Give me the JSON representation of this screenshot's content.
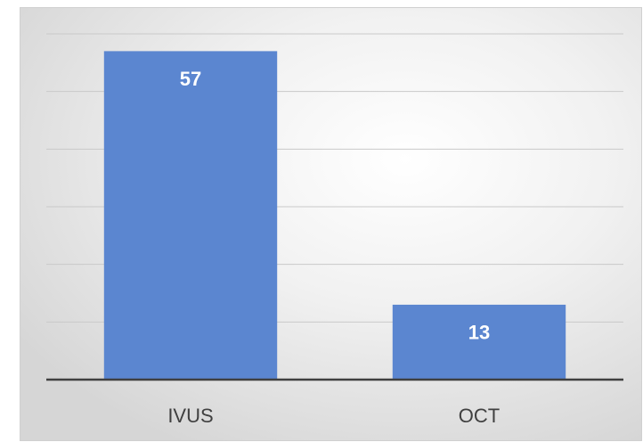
{
  "chart_data": {
    "type": "bar",
    "categories": [
      "IVUS",
      "OCT"
    ],
    "values": [
      57,
      13
    ],
    "color": "#5b86d0",
    "ylim": [
      0,
      60
    ],
    "yticks": [
      0,
      10,
      20,
      30,
      40,
      50,
      60
    ],
    "grid": true
  }
}
